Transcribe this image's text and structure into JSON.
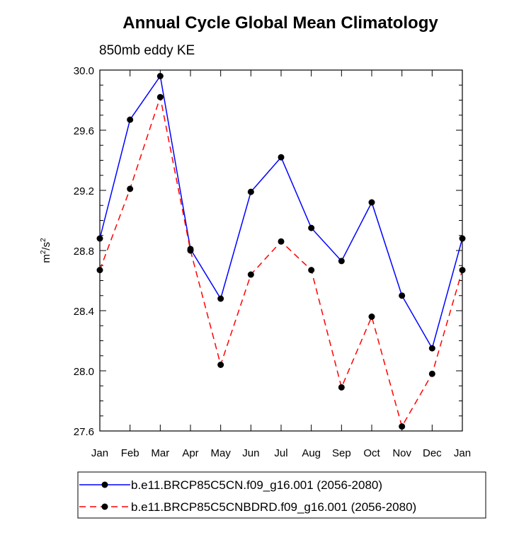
{
  "chart_data": {
    "type": "line",
    "title": "Annual Cycle Global Mean Climatology",
    "subtitle": "850mb eddy KE",
    "ylabel_base": "m",
    "ylabel_sup1": "2",
    "ylabel_mid": "/s",
    "ylabel_sup2": "2",
    "xlabel": "",
    "categories": [
      "Jan",
      "Feb",
      "Mar",
      "Apr",
      "May",
      "Jun",
      "Jul",
      "Aug",
      "Sep",
      "Oct",
      "Nov",
      "Dec",
      "Jan"
    ],
    "ylim": [
      27.6,
      30.0
    ],
    "yticks": [
      "27.6",
      "28.0",
      "28.4",
      "28.8",
      "29.2",
      "29.6",
      "30.0"
    ],
    "grid": false,
    "legend_position": "bottom",
    "series": [
      {
        "name": "b.e11.BRCP85C5CN.f09_g16.001 (2056-2080)",
        "color": "#0000ff",
        "dash": "solid",
        "values": [
          28.88,
          29.67,
          29.96,
          28.81,
          28.48,
          29.19,
          29.42,
          28.95,
          28.73,
          29.12,
          28.5,
          28.15,
          28.88
        ]
      },
      {
        "name": "b.e11.BRCP85C5CNBDRD.f09_g16.001 (2056-2080)",
        "color": "#ff0000",
        "dash": "dashed",
        "values": [
          28.67,
          29.21,
          29.82,
          28.8,
          28.04,
          28.64,
          28.86,
          28.67,
          27.89,
          28.36,
          27.63,
          27.98,
          28.67
        ]
      }
    ]
  }
}
